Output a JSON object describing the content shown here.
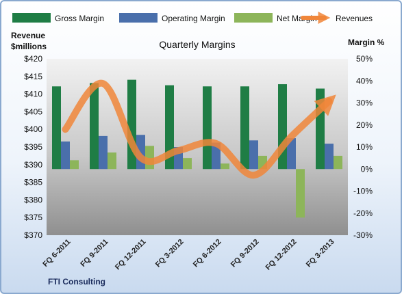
{
  "chart_data": {
    "type": "bar",
    "title": "Quarterly Margins",
    "ylabel_left": [
      "Revenue",
      "$millions"
    ],
    "ylabel_right": "Margin %",
    "source": "FTI Consulting",
    "categories": [
      "FQ 6-2011",
      "FQ 9-2011",
      "FQ 12-2011",
      "FQ 3-2012",
      "FQ 6-2012",
      "FQ 9-2012",
      "FQ 12-2012",
      "FQ 3-2013"
    ],
    "left_axis": {
      "min": 370,
      "max": 420,
      "step": 5,
      "prefix": "$"
    },
    "right_axis": {
      "min": -30,
      "max": 50,
      "step": 10,
      "suffix": "%"
    },
    "series": [
      {
        "name": "Gross Margin",
        "axis": "right",
        "kind": "bar",
        "color": "#1f7d45",
        "values": [
          37.5,
          39,
          40.5,
          38,
          37.5,
          37.5,
          38.5,
          36.5
        ]
      },
      {
        "name": "Operating Margin",
        "axis": "right",
        "kind": "bar",
        "color": "#4a6fab",
        "values": [
          12.5,
          15,
          15.5,
          10,
          12,
          13,
          14,
          11.5
        ]
      },
      {
        "name": "Net Margin",
        "axis": "right",
        "kind": "bar",
        "color": "#8db55a",
        "values": [
          4,
          7.5,
          10.5,
          5,
          2.5,
          6,
          -22,
          6
        ]
      },
      {
        "name": "Revenues",
        "axis": "left",
        "kind": "line",
        "color": "#f0863a",
        "values": [
          400,
          413,
          392,
          394,
          396,
          387,
          398,
          408
        ]
      }
    ],
    "legend_position": "top",
    "grid": false
  }
}
